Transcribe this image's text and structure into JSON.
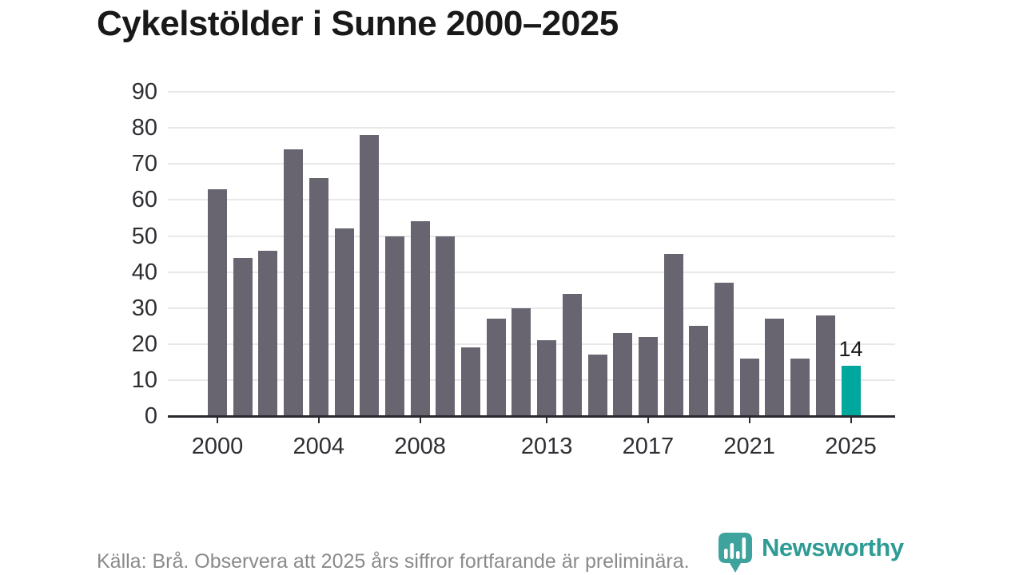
{
  "chart_data": {
    "type": "bar",
    "title": "Cykelstölder i Sunne 2000–2025",
    "categories": [
      "2000",
      "2001",
      "2002",
      "2003",
      "2004",
      "2005",
      "2006",
      "2007",
      "2008",
      "2009",
      "2010",
      "2011",
      "2012",
      "2013",
      "2014",
      "2015",
      "2016",
      "2017",
      "2018",
      "2019",
      "2020",
      "2021",
      "2022",
      "2023",
      "2024",
      "2025"
    ],
    "values": [
      63,
      44,
      46,
      74,
      66,
      52,
      78,
      50,
      54,
      50,
      19,
      27,
      30,
      21,
      34,
      17,
      23,
      22,
      45,
      25,
      37,
      16,
      27,
      16,
      28,
      14
    ],
    "xlabel": "",
    "ylabel": "",
    "ylim": [
      0,
      90
    ],
    "y_ticks": [
      0,
      10,
      20,
      30,
      40,
      50,
      60,
      70,
      80,
      90
    ],
    "x_tick_labels": [
      "2000",
      "2004",
      "2008",
      "2013",
      "2017",
      "2021",
      "2025"
    ],
    "grid": true,
    "legend_position": "none",
    "bar_color": "#686570",
    "highlight_color": "#00a79d",
    "highlight_category": "2025",
    "value_label": {
      "text": "14",
      "category": "2025"
    }
  },
  "footer": {
    "source_note": "Källa: Brå. Observera att 2025 års siffror fortfarande är preliminära.",
    "brand": "Newsworthy",
    "brand_color": "#2e9c95"
  }
}
